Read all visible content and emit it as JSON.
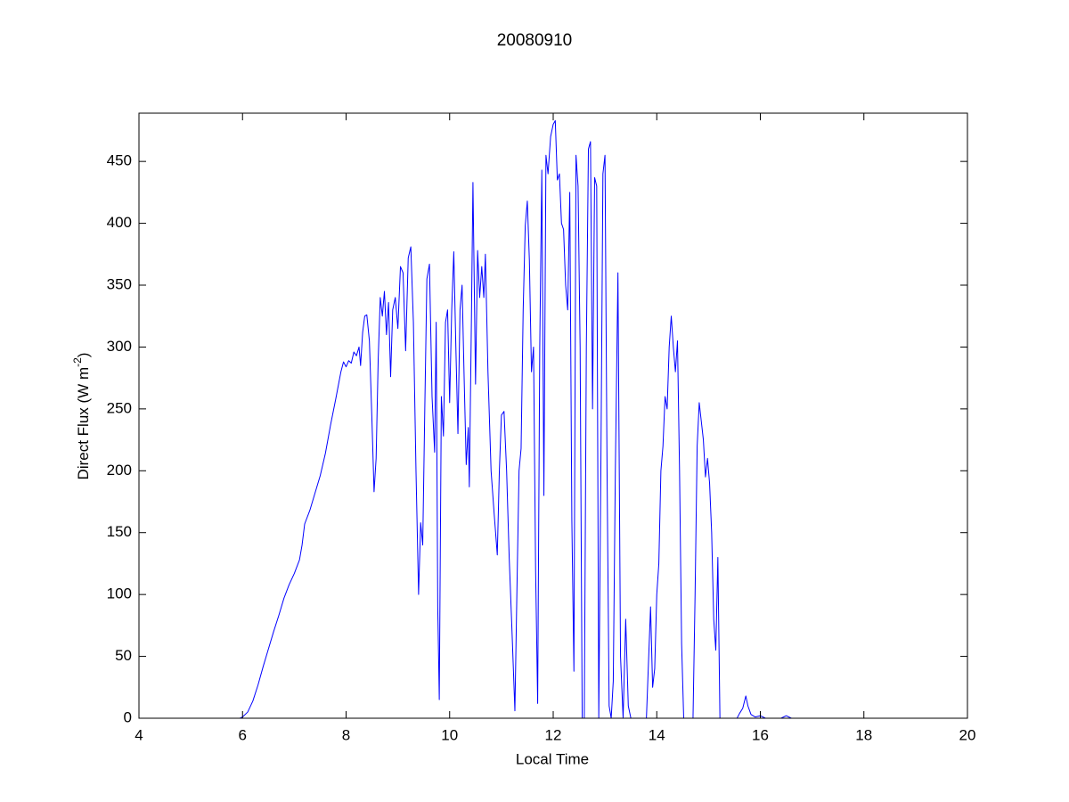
{
  "chart_data": {
    "type": "line",
    "title": "20080910",
    "xlabel": "Local Time",
    "ylabel": [
      "Direct Flux (W m",
      "-2",
      ")"
    ],
    "color": "#0000ff",
    "xlim": [
      4,
      20
    ],
    "xticks": [
      4,
      6,
      8,
      10,
      12,
      14,
      16,
      18,
      20
    ],
    "ylim": [
      0,
      489
    ],
    "yticks": [
      0,
      50,
      100,
      150,
      200,
      250,
      300,
      350,
      400,
      450
    ],
    "x": [
      4.8,
      5.0,
      5.5,
      5.95,
      6.0,
      6.1,
      6.2,
      6.3,
      6.4,
      6.5,
      6.6,
      6.7,
      6.8,
      6.9,
      7.0,
      7.1,
      7.15,
      7.2,
      7.3,
      7.4,
      7.5,
      7.6,
      7.7,
      7.8,
      7.9,
      7.95,
      8.0,
      8.05,
      8.1,
      8.15,
      8.2,
      8.25,
      8.28,
      8.32,
      8.36,
      8.4,
      8.45,
      8.5,
      8.54,
      8.58,
      8.62,
      8.66,
      8.7,
      8.74,
      8.78,
      8.82,
      8.86,
      8.9,
      8.95,
      9.0,
      9.05,
      9.1,
      9.15,
      9.2,
      9.25,
      9.3,
      9.35,
      9.4,
      9.44,
      9.48,
      9.52,
      9.56,
      9.61,
      9.66,
      9.71,
      9.74,
      9.77,
      9.8,
      9.84,
      9.88,
      9.92,
      9.96,
      10.0,
      10.04,
      10.08,
      10.12,
      10.16,
      10.2,
      10.24,
      10.28,
      10.32,
      10.36,
      10.38,
      10.42,
      10.45,
      10.5,
      10.54,
      10.58,
      10.62,
      10.66,
      10.69,
      10.74,
      10.8,
      10.86,
      10.92,
      10.96,
      11.0,
      11.05,
      11.1,
      11.15,
      11.2,
      11.26,
      11.3,
      11.34,
      11.38,
      11.42,
      11.46,
      11.5,
      11.54,
      11.58,
      11.62,
      11.66,
      11.7,
      11.74,
      11.78,
      11.82,
      11.86,
      11.9,
      11.95,
      12.0,
      12.04,
      12.08,
      12.12,
      12.16,
      12.2,
      12.24,
      12.28,
      12.32,
      12.36,
      12.4,
      12.44,
      12.48,
      12.52,
      12.56,
      12.6,
      12.64,
      12.68,
      12.72,
      12.76,
      12.8,
      12.84,
      12.88,
      12.92,
      12.96,
      13.0,
      13.04,
      13.08,
      13.12,
      13.16,
      13.2,
      13.25,
      13.3,
      13.35,
      13.4,
      13.45,
      13.5,
      13.6,
      13.7,
      13.8,
      13.88,
      13.92,
      13.96,
      14.0,
      14.04,
      14.08,
      14.12,
      14.16,
      14.2,
      14.24,
      14.28,
      14.32,
      14.36,
      14.4,
      14.44,
      14.48,
      14.52,
      14.6,
      14.7,
      14.74,
      14.78,
      14.82,
      14.86,
      14.9,
      14.94,
      14.98,
      15.02,
      15.06,
      15.1,
      15.14,
      15.18,
      15.22,
      15.4,
      15.55,
      15.6,
      15.66,
      15.72,
      15.76,
      15.82,
      15.9,
      16.0,
      16.1,
      16.4,
      16.5,
      16.6,
      17.0,
      18.0,
      19.0,
      20.0
    ],
    "values": [
      0,
      0,
      0,
      0,
      1,
      5,
      14,
      27,
      42,
      56,
      70,
      83,
      97,
      108,
      117,
      128,
      140,
      157,
      168,
      182,
      196,
      214,
      237,
      258,
      280,
      288,
      284,
      289,
      287,
      296,
      293,
      300,
      285,
      312,
      325,
      326,
      305,
      240,
      183,
      210,
      290,
      340,
      325,
      345,
      310,
      336,
      276,
      330,
      340,
      315,
      365,
      360,
      297,
      372,
      381,
      320,
      200,
      100,
      158,
      140,
      250,
      355,
      367,
      260,
      215,
      320,
      90,
      15,
      260,
      228,
      320,
      330,
      255,
      330,
      377,
      300,
      230,
      330,
      350,
      275,
      205,
      235,
      187,
      320,
      433,
      270,
      378,
      340,
      365,
      340,
      375,
      280,
      200,
      165,
      132,
      200,
      245,
      248,
      200,
      130,
      75,
      6,
      105,
      200,
      218,
      330,
      398,
      418,
      370,
      280,
      300,
      120,
      12,
      300,
      443,
      180,
      455,
      440,
      470,
      480,
      483,
      435,
      440,
      400,
      395,
      350,
      330,
      425,
      160,
      38,
      455,
      430,
      300,
      0,
      0,
      300,
      460,
      466,
      250,
      437,
      430,
      0,
      200,
      440,
      455,
      200,
      10,
      0,
      30,
      200,
      360,
      50,
      0,
      80,
      10,
      0,
      0,
      0,
      0,
      90,
      25,
      40,
      100,
      125,
      200,
      220,
      260,
      250,
      300,
      325,
      300,
      280,
      305,
      200,
      60,
      0,
      0,
      0,
      100,
      220,
      255,
      240,
      225,
      195,
      210,
      190,
      150,
      80,
      55,
      130,
      0,
      0,
      0,
      4,
      8,
      18,
      10,
      3,
      1,
      2,
      0,
      0,
      2,
      0,
      0,
      0,
      0,
      0
    ]
  }
}
